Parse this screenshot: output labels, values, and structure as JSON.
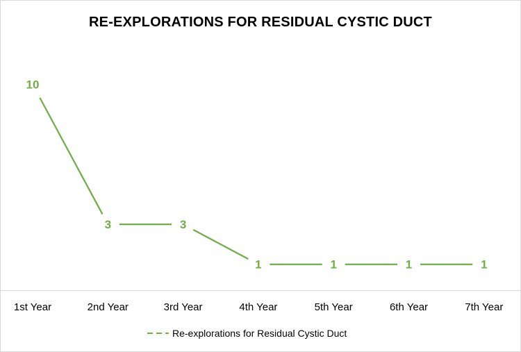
{
  "chart_data": {
    "type": "line",
    "title": "RE-EXPLORATIONS FOR RESIDUAL CYSTIC DUCT",
    "categories": [
      "1st Year",
      "2nd Year",
      "3rd Year",
      "4th Year",
      "5th Year",
      "6th Year",
      "7th Year"
    ],
    "series": [
      {
        "name": "Re-explorations for Residual Cystic Duct",
        "values": [
          10,
          3,
          3,
          1,
          1,
          1,
          1
        ],
        "color": "#70ad47"
      }
    ],
    "data_labels": true,
    "legend_position": "bottom",
    "grid": false,
    "ylim": [
      0,
      12
    ]
  }
}
